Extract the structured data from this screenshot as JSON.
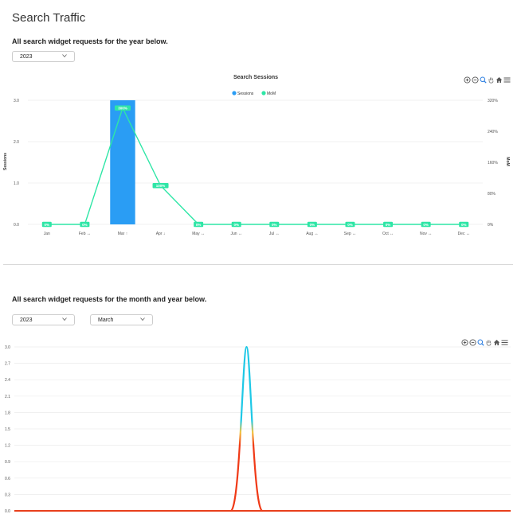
{
  "page": {
    "title": "Search Traffic",
    "yearly_subtitle": "All search widget requests for the year below.",
    "monthly_subtitle": "All search widget requests for the month and year below."
  },
  "filters": {
    "yearly_year": "2023",
    "monthly_year": "2023",
    "monthly_month": "March"
  },
  "toolbar_icons": [
    "zoom-in-icon",
    "zoom-out-icon",
    "magnifier-icon",
    "pan-hand-icon",
    "home-icon",
    "menu-icon"
  ],
  "colors": {
    "bar": "#2a9df4",
    "mom_line": "#2ee6a6",
    "gradient_top": "#1ec8e6",
    "gradient_mid": "#f4c542",
    "gradient_bottom": "#f03a17",
    "baseline": "#e8401c"
  },
  "chart_data": [
    {
      "type": "bar",
      "title": "Search Sessions",
      "legend": [
        "Sessions",
        "MoM"
      ],
      "legend_position": "top-center",
      "ylabel": "Sessions",
      "y2label": "MoM",
      "categories": [
        "Jan",
        "Feb ↔",
        "Mar ↑",
        "Apr ↓",
        "May ↔",
        "Jun ↔",
        "Jul ↔",
        "Aug ↔",
        "Sep ↔",
        "Oct ↔",
        "Nov ↔",
        "Dec ↔"
      ],
      "ylim": [
        0,
        3
      ],
      "yticks": [
        "0.0",
        "1.0",
        "2.0",
        "3.0"
      ],
      "y2lim": [
        0,
        320
      ],
      "y2ticks": [
        "0%",
        "80%",
        "160%",
        "240%",
        "320%"
      ],
      "series": [
        {
          "name": "Sessions",
          "kind": "bar",
          "axis": "left",
          "values": [
            0,
            0,
            3,
            0,
            0,
            0,
            0,
            0,
            0,
            0,
            0,
            0
          ]
        },
        {
          "name": "MoM",
          "kind": "line",
          "axis": "right",
          "values": [
            0,
            0,
            300,
            100,
            0,
            0,
            0,
            0,
            0,
            0,
            0,
            0
          ],
          "labels": [
            "0%",
            "0%",
            "300%",
            "100%",
            "0%",
            "0%",
            "0%",
            "0%",
            "0%",
            "0%",
            "0%",
            "0%"
          ]
        }
      ],
      "grid": true
    },
    {
      "type": "area",
      "ylim": [
        0,
        3
      ],
      "yticks": [
        "0.0",
        "0.3",
        "0.6",
        "0.9",
        "1.2",
        "1.5",
        "1.8",
        "2.1",
        "2.4",
        "2.7",
        "3.0"
      ],
      "series": [
        {
          "name": "",
          "peak_value": 3.0,
          "baseline_value": 0.0
        }
      ],
      "grid": true
    }
  ]
}
